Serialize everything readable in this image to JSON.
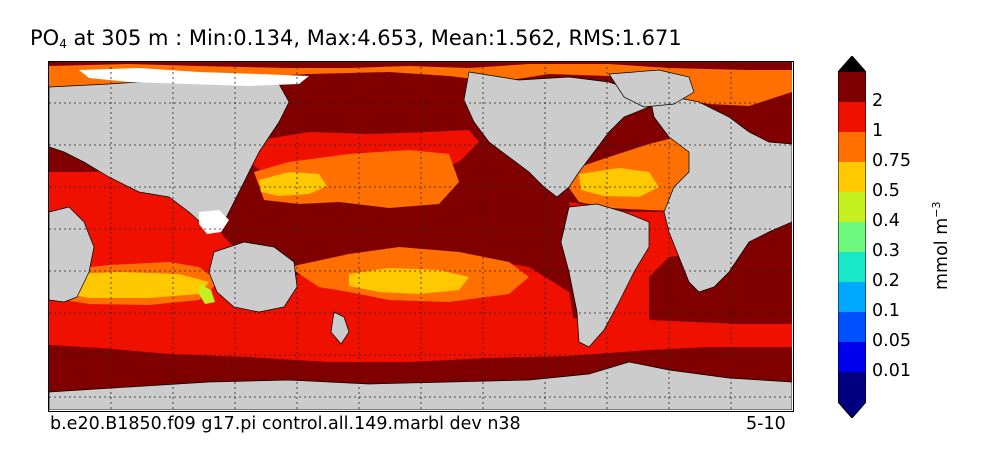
{
  "title": {
    "variable": "PO",
    "variable_sub": "4",
    "rest": " at 305 m : Min:0.134, Max:4.653, Mean:1.562, RMS:1.671"
  },
  "footer": {
    "case_name": "b.e20.B1850.f09 g17.pi control.all.149.marbl dev n38",
    "years": "5-10"
  },
  "colorbar": {
    "unit": "mmol m",
    "unit_exp": "−3",
    "ticks": [
      "2",
      "1",
      "0.75",
      "0.5",
      "0.4",
      "0.3",
      "0.2",
      "0.1",
      "0.05",
      "0.01"
    ],
    "colors": [
      "#000080",
      "#0000ee",
      "#0050ff",
      "#00a8ff",
      "#18e8c8",
      "#6cf87c",
      "#c4f020",
      "#ffc800",
      "#ff7000",
      "#f01000",
      "#800000"
    ],
    "under_color": "#000080",
    "over_color": "#000000"
  },
  "map": {
    "land_color": "#cccccc",
    "nodata_color": "#ffffff",
    "gridlines": "dotted"
  }
}
